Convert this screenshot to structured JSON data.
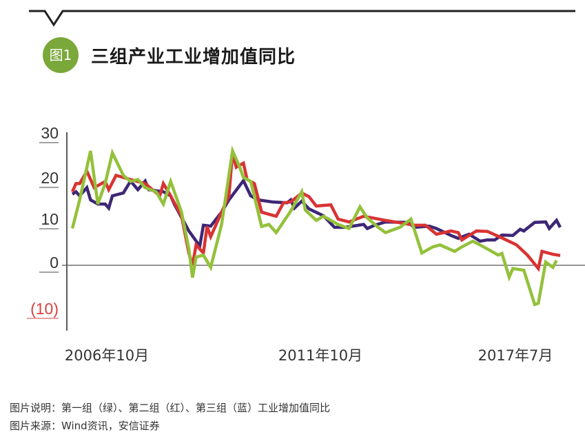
{
  "header": {
    "badge": "图1",
    "title": "三组产业工业增加值同比"
  },
  "footer": {
    "caption": "图片说明：第一组（绿）、第二组（红）、第三组（蓝）工业增加值同比",
    "source": "图片来源：Wind资讯，安信证券"
  },
  "chart_data": {
    "type": "line",
    "title": "三组产业工业增加值同比",
    "xlabel": "",
    "ylabel": "",
    "x_unit": "months since 2006年10月",
    "xlim": [
      0,
      134
    ],
    "ylim": [
      -12,
      32
    ],
    "yticks": [
      {
        "value": 30,
        "label": "30"
      },
      {
        "value": 20,
        "label": "20"
      },
      {
        "value": 10,
        "label": "10"
      },
      {
        "value": 0,
        "label": "0"
      },
      {
        "value": -10,
        "label": "(10)"
      }
    ],
    "xtick_labels": [
      "2006年10月",
      "2011年10月",
      "2017年7月"
    ],
    "grid": false,
    "series": [
      {
        "name": "第三组（蓝）",
        "color": "#3d2776",
        "points": [
          [
            0,
            17.4
          ],
          [
            1,
            18
          ],
          [
            2,
            17
          ],
          [
            4,
            19
          ],
          [
            5,
            16
          ],
          [
            7,
            15
          ],
          [
            9,
            15
          ],
          [
            10,
            14
          ],
          [
            11,
            17
          ],
          [
            14,
            17.7
          ],
          [
            16,
            20.6
          ],
          [
            18,
            18.5
          ],
          [
            20,
            20.6
          ],
          [
            21,
            18.5
          ],
          [
            25,
            18
          ],
          [
            27,
            17
          ],
          [
            28,
            15
          ],
          [
            32,
            8.4
          ],
          [
            35,
            4.7
          ],
          [
            36,
            9.8
          ],
          [
            38,
            9.6
          ],
          [
            41,
            13
          ],
          [
            43,
            16
          ],
          [
            47,
            20.7
          ],
          [
            49,
            17
          ],
          [
            51,
            16
          ],
          [
            55,
            15.5
          ],
          [
            59,
            15.3
          ],
          [
            60,
            16
          ],
          [
            61,
            14
          ],
          [
            63,
            15.7
          ],
          [
            65,
            13.8
          ],
          [
            69,
            12.1
          ],
          [
            72,
            9.3
          ],
          [
            75,
            9.3
          ],
          [
            80,
            10
          ],
          [
            81,
            9
          ],
          [
            83,
            9.8
          ],
          [
            86,
            10.6
          ],
          [
            92,
            10.5
          ],
          [
            94,
            9.3
          ],
          [
            98,
            9.6
          ],
          [
            100,
            9
          ],
          [
            104,
            7.3
          ],
          [
            106,
            6.6
          ],
          [
            109,
            7.6
          ],
          [
            112,
            5.9
          ],
          [
            114,
            6.2
          ],
          [
            116,
            6.2
          ],
          [
            118,
            7.4
          ],
          [
            121,
            7.3
          ],
          [
            123,
            8.8
          ],
          [
            124,
            8.4
          ],
          [
            127,
            10.5
          ],
          [
            130,
            10.6
          ],
          [
            131,
            9
          ],
          [
            133,
            11
          ],
          [
            134,
            9.3
          ]
        ]
      },
      {
        "name": "第二组（红）",
        "color": "#d93333",
        "points": [
          [
            0,
            18
          ],
          [
            1,
            20
          ],
          [
            2,
            20
          ],
          [
            4,
            23
          ],
          [
            6,
            19
          ],
          [
            9,
            20.5
          ],
          [
            10,
            18.5
          ],
          [
            12,
            22
          ],
          [
            14,
            21.5
          ],
          [
            16,
            21
          ],
          [
            18,
            20.5
          ],
          [
            20,
            20
          ],
          [
            22,
            18.5
          ],
          [
            24,
            17
          ],
          [
            25,
            20
          ],
          [
            27,
            17
          ],
          [
            30,
            12
          ],
          [
            32,
            3
          ],
          [
            33,
            0
          ],
          [
            34,
            5
          ],
          [
            36,
            3
          ],
          [
            37,
            9.5
          ],
          [
            38,
            7
          ],
          [
            41,
            13
          ],
          [
            43,
            17
          ],
          [
            44,
            27.5
          ],
          [
            45,
            24
          ],
          [
            47,
            25
          ],
          [
            48,
            21
          ],
          [
            50,
            20
          ],
          [
            52,
            13
          ],
          [
            54,
            12.5
          ],
          [
            56,
            12
          ],
          [
            58,
            15.3
          ],
          [
            60,
            15.5
          ],
          [
            63,
            17.7
          ],
          [
            65,
            16.8
          ],
          [
            67,
            14.5
          ],
          [
            71,
            14.8
          ],
          [
            73,
            11.3
          ],
          [
            76,
            10.6
          ],
          [
            80,
            12
          ],
          [
            86,
            11
          ],
          [
            94,
            9.8
          ],
          [
            97,
            9.8
          ],
          [
            100,
            7.6
          ],
          [
            104,
            8.4
          ],
          [
            106,
            8
          ],
          [
            107,
            6.2
          ],
          [
            111,
            8.4
          ],
          [
            114,
            8.3
          ],
          [
            118,
            6.7
          ],
          [
            122,
            5
          ],
          [
            125,
            2.5
          ],
          [
            128,
            -0.8
          ],
          [
            129,
            3.4
          ],
          [
            132,
            2.7
          ],
          [
            134,
            2.4
          ]
        ]
      },
      {
        "name": "第一组（绿）",
        "color": "#93c13a",
        "points": [
          [
            0,
            9
          ],
          [
            2,
            16
          ],
          [
            5,
            28
          ],
          [
            7,
            15
          ],
          [
            9,
            20
          ],
          [
            11,
            27.5
          ],
          [
            14,
            22
          ],
          [
            16,
            20.5
          ],
          [
            18,
            21
          ],
          [
            20,
            19
          ],
          [
            23,
            18
          ],
          [
            25,
            15
          ],
          [
            27,
            20.5
          ],
          [
            30,
            13
          ],
          [
            32,
            4
          ],
          [
            33,
            -3
          ],
          [
            34,
            2
          ],
          [
            36,
            2.5
          ],
          [
            38,
            -0.5
          ],
          [
            41,
            10
          ],
          [
            44,
            28
          ],
          [
            46,
            24
          ],
          [
            47,
            21.5
          ],
          [
            49,
            20.5
          ],
          [
            52,
            9.5
          ],
          [
            54,
            10
          ],
          [
            56,
            8
          ],
          [
            60,
            13.3
          ],
          [
            63,
            18
          ],
          [
            64,
            13.5
          ],
          [
            67,
            11
          ],
          [
            69,
            12
          ],
          [
            73,
            10
          ],
          [
            76,
            9
          ],
          [
            79,
            14.3
          ],
          [
            81,
            11.6
          ],
          [
            84,
            9.3
          ],
          [
            86,
            8
          ],
          [
            90,
            9.3
          ],
          [
            93,
            11.3
          ],
          [
            96,
            3
          ],
          [
            99,
            4.5
          ],
          [
            101,
            5
          ],
          [
            105,
            3.4
          ],
          [
            107,
            4.5
          ],
          [
            110,
            5.9
          ],
          [
            113,
            4.5
          ],
          [
            117,
            2.5
          ],
          [
            118,
            2.9
          ],
          [
            120,
            -2.9
          ],
          [
            121,
            -0.8
          ],
          [
            124,
            -1.2
          ],
          [
            127,
            -9.6
          ],
          [
            128,
            -9.3
          ],
          [
            130,
            0.8
          ],
          [
            132,
            -0.5
          ],
          [
            133,
            1.2
          ]
        ]
      }
    ]
  }
}
